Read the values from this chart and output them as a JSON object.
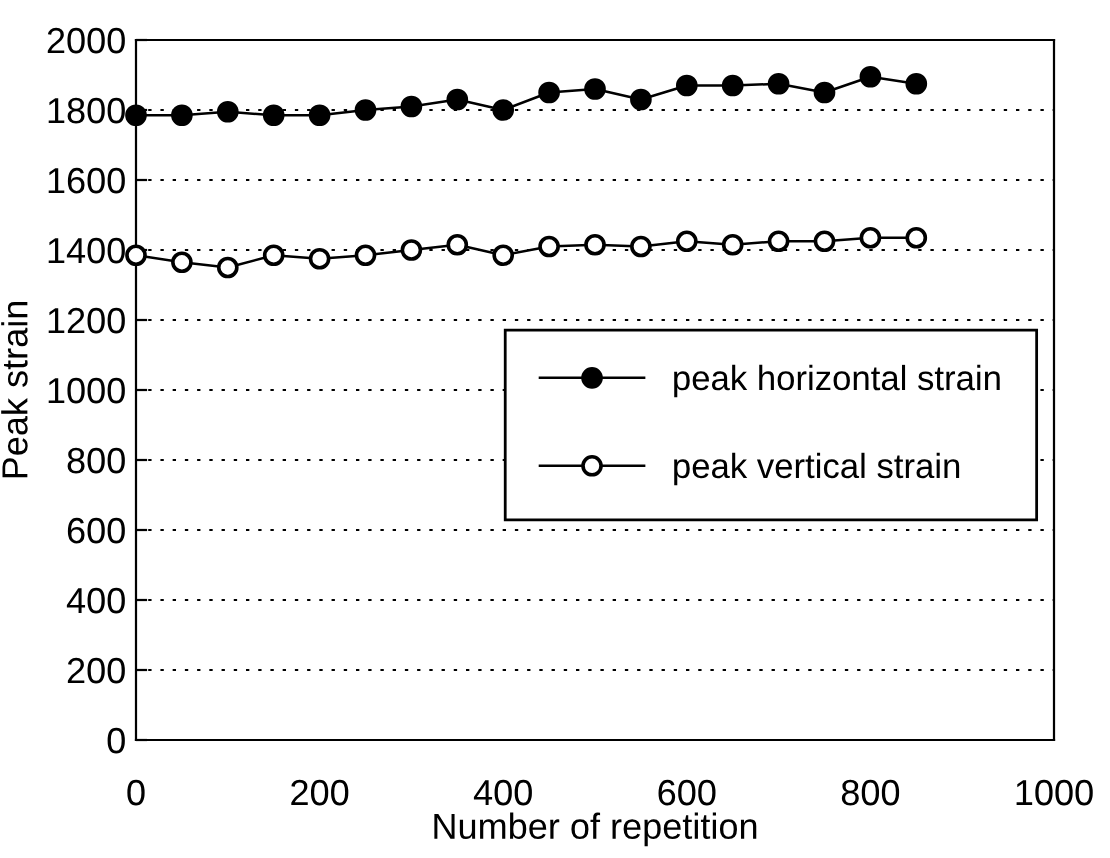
{
  "chart_data": {
    "type": "line",
    "xlabel": "Number of repetition",
    "ylabel": "Peak strain",
    "x": [
      0,
      50,
      100,
      150,
      200,
      250,
      300,
      350,
      400,
      450,
      500,
      550,
      600,
      650,
      700,
      750,
      800,
      850
    ],
    "series": [
      {
        "name": "peak horizontal strain",
        "color": "#000000",
        "marker": "circle",
        "values": [
          1785,
          1785,
          1795,
          1785,
          1785,
          1800,
          1810,
          1830,
          1800,
          1850,
          1860,
          1830,
          1870,
          1870,
          1875,
          1850,
          1895,
          1875
        ]
      },
      {
        "name": "peak vertical strain",
        "color": "#ffffff",
        "marker": "circle",
        "values": [
          1385,
          1365,
          1350,
          1385,
          1375,
          1385,
          1400,
          1415,
          1385,
          1410,
          1415,
          1410,
          1425,
          1415,
          1425,
          1425,
          1435,
          1435
        ]
      }
    ],
    "xlim": [
      0,
      1000
    ],
    "xticks": [
      0,
      200,
      400,
      600,
      800,
      1000
    ],
    "ylim": [
      0,
      2000
    ],
    "yticks": [
      0,
      200,
      400,
      600,
      800,
      1000,
      1200,
      1400,
      1600,
      1800,
      2000
    ],
    "grid": "y",
    "legend": "right",
    "line_style": "solid"
  }
}
